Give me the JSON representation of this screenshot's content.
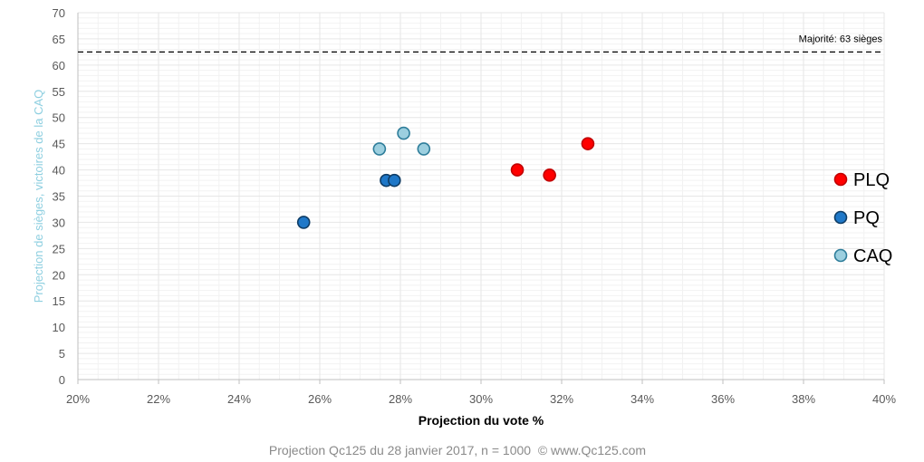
{
  "chart_data": {
    "type": "scatter",
    "title": "",
    "xlabel": "Projection du vote %",
    "ylabel": "Projection de sièges, victoires de la CAQ",
    "xlim": [
      0.2,
      0.4
    ],
    "ylim": [
      0,
      70
    ],
    "x_ticks": [
      "20%",
      "22%",
      "24%",
      "26%",
      "28%",
      "30%",
      "32%",
      "34%",
      "36%",
      "38%",
      "40%"
    ],
    "y_ticks": [
      "0",
      "5",
      "10",
      "15",
      "20",
      "25",
      "30",
      "35",
      "40",
      "45",
      "50",
      "55",
      "60",
      "65",
      "70"
    ],
    "grid": true,
    "majority_line": {
      "value": 62.5,
      "label": "Majorité: 63 sièges"
    },
    "legend_position": "right",
    "series": [
      {
        "name": "PLQ",
        "color": "#ff0000",
        "stroke": "#c00000",
        "points": [
          {
            "x": 0.309,
            "y": 40
          },
          {
            "x": 0.317,
            "y": 39
          },
          {
            "x": 0.3265,
            "y": 45
          }
        ]
      },
      {
        "name": "PQ",
        "color": "#1f78c8",
        "stroke": "#0f3d66",
        "points": [
          {
            "x": 0.256,
            "y": 30
          },
          {
            "x": 0.2765,
            "y": 38
          },
          {
            "x": 0.2785,
            "y": 38
          }
        ]
      },
      {
        "name": "CAQ",
        "color": "#9ccfdf",
        "stroke": "#2e7d9a",
        "points": [
          {
            "x": 0.2748,
            "y": 44
          },
          {
            "x": 0.2808,
            "y": 47
          },
          {
            "x": 0.2858,
            "y": 44
          }
        ]
      }
    ]
  },
  "footer": "Projection Qc125 du 28 janvier 2017, n = 1000  © www.Qc125.com"
}
